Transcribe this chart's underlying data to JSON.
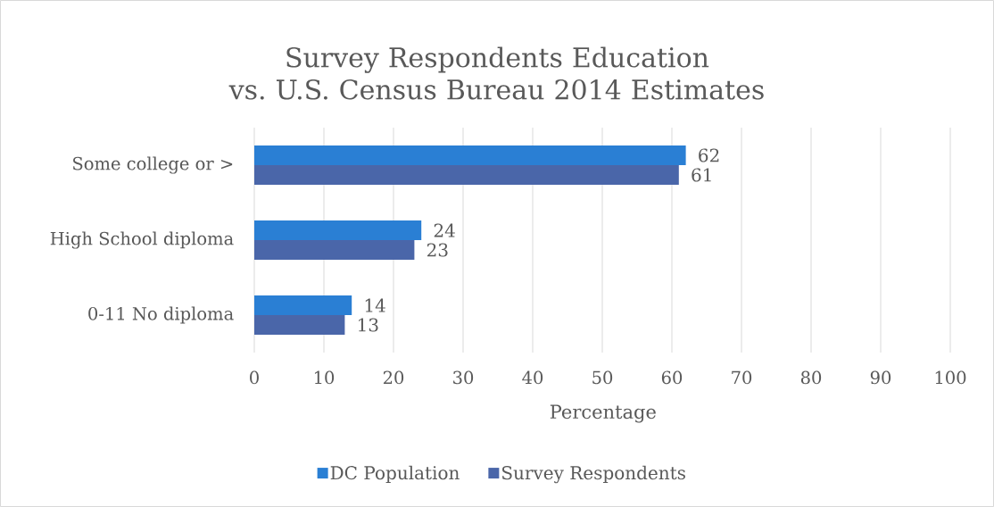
{
  "chart_data": {
    "type": "bar",
    "orientation": "horizontal",
    "title": "Survey Respondents Education\nvs. U.S. Census Bureau 2014 Estimates",
    "xlabel": "Percentage",
    "categories": [
      "Some college or >",
      "High School diploma",
      "0-11 No diploma"
    ],
    "series": [
      {
        "name": "DC Population",
        "color": "#2a7fd4",
        "values": [
          62,
          24,
          14
        ]
      },
      {
        "name": "Survey Respondents",
        "color": "#4a66a9",
        "values": [
          61,
          23,
          13
        ]
      }
    ],
    "xlim": [
      0,
      100
    ],
    "xticks": [
      0,
      10,
      20,
      30,
      40,
      50,
      60,
      70,
      80,
      90,
      100
    ],
    "grid": "x",
    "legend": "bottom",
    "data_labels": true
  }
}
